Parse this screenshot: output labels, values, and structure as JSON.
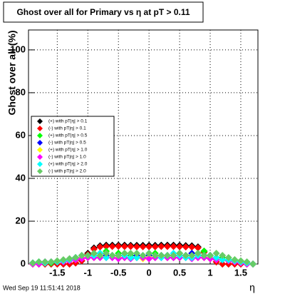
{
  "chart_data": {
    "type": "scatter",
    "title": "Ghost over all for Primary vs η at pT > 0.11",
    "y_label": "Ghost over all (%)",
    "x_label": "η",
    "timestamp": "Wed Sep 19 11:51:41 2018",
    "xlim": [
      -1.97,
      1.78
    ],
    "ylim": [
      0,
      109.3
    ],
    "xticks": [
      -1.5,
      -1,
      -0.5,
      0,
      0.5,
      1,
      1.5
    ],
    "yticks": [
      0,
      20,
      40,
      60,
      80,
      100
    ],
    "grid": true,
    "legend": "left",
    "x": [
      -1.9,
      -1.8,
      -1.7,
      -1.6,
      -1.5,
      -1.4,
      -1.3,
      -1.2,
      -1.1,
      -1.0,
      -0.9,
      -0.8,
      -0.7,
      -0.6,
      -0.5,
      -0.4,
      -0.3,
      -0.2,
      -0.1,
      0,
      0.1,
      0.2,
      0.3,
      0.4,
      0.5,
      0.6,
      0.7,
      0.8,
      0.9,
      1.0,
      1.1,
      1.2,
      1.3,
      1.4,
      1.5,
      1.6,
      1.7
    ],
    "series": [
      {
        "name": "(+) with pT|η| > 0.1",
        "color": "#000000",
        "values": [
          0,
          0,
          0,
          0,
          0,
          0,
          0,
          0.5,
          1.5,
          5,
          7.5,
          8.5,
          8.8,
          8.8,
          8.8,
          8.8,
          8.7,
          8.7,
          8.7,
          8.7,
          8.7,
          8.8,
          8.8,
          8.8,
          8.7,
          8.6,
          8.5,
          8,
          6,
          3,
          1,
          0,
          0,
          0,
          0,
          0,
          0
        ]
      },
      {
        "name": "(-) with pT|η| > 0.1",
        "color": "#ff0000",
        "values": [
          0,
          0,
          0,
          0,
          0,
          0,
          0,
          0.5,
          1.5,
          4.5,
          7,
          8,
          8.2,
          8.2,
          8.3,
          8.2,
          8.2,
          8.1,
          8.1,
          8.1,
          8.1,
          8.2,
          8.2,
          8.2,
          8.1,
          8,
          7.9,
          7.6,
          5.5,
          2.5,
          1,
          0,
          0,
          0,
          0,
          0,
          0
        ]
      },
      {
        "name": "(+) with pT|η| > 0.5",
        "color": "#00ff00",
        "values": [
          0.5,
          1,
          0.5,
          0.5,
          1,
          1,
          2,
          3,
          4,
          4,
          5,
          5,
          6,
          4,
          5,
          5,
          4,
          3,
          3,
          4,
          5,
          4,
          3,
          4,
          5,
          4,
          5,
          5,
          6,
          4,
          3,
          3,
          2,
          2,
          1,
          0.5,
          0
        ]
      },
      {
        "name": "(-) with pT|η| > 0.5",
        "color": "#0000ff",
        "values": [
          0.5,
          0.5,
          1,
          1,
          1,
          1.5,
          2,
          3,
          3,
          4,
          4,
          5,
          4,
          4,
          3,
          4,
          3,
          4,
          3,
          4,
          3,
          4,
          4,
          3,
          4,
          4,
          5,
          4,
          4,
          4,
          3,
          2,
          2,
          1,
          1,
          0.5,
          0
        ]
      },
      {
        "name": "(+) with pT|η| > 1.0",
        "color": "#ffff00",
        "values": [
          0,
          0.5,
          0.5,
          1,
          1,
          1.5,
          2,
          2,
          3,
          3,
          3,
          3.5,
          3,
          4,
          3,
          3,
          3,
          3,
          2.5,
          3,
          3,
          3.5,
          3,
          3,
          3,
          3,
          3,
          3,
          3,
          3,
          2,
          2,
          1.5,
          1,
          0.5,
          0.5,
          0
        ]
      },
      {
        "name": "(-) with pT|η| > 1.0",
        "color": "#ff00ff",
        "values": [
          0,
          0,
          0.5,
          1,
          1,
          1,
          1.5,
          2,
          2.5,
          3,
          3,
          3,
          3,
          3,
          2.5,
          3,
          2.5,
          3,
          3,
          2.5,
          3,
          3,
          3,
          3,
          3,
          3,
          2.5,
          3,
          3,
          2.5,
          2,
          2,
          1.5,
          1,
          0.5,
          0,
          0
        ]
      },
      {
        "name": "(+) with pT|η| > 2.0",
        "color": "#00ffff",
        "values": [
          0.5,
          1,
          0.5,
          1,
          1,
          1.5,
          2,
          3,
          4,
          4,
          4,
          5,
          3,
          4,
          4,
          4,
          3,
          3,
          4,
          5,
          4,
          3,
          4,
          5,
          4,
          3,
          3,
          4,
          4,
          4,
          3,
          2,
          2,
          1.5,
          1,
          0.5,
          0
        ]
      },
      {
        "name": "(-) with pT|η| > 2.0",
        "color": "#66cc66",
        "values": [
          0.5,
          1,
          1,
          1,
          1.5,
          2,
          2.5,
          3,
          4,
          4,
          5,
          4,
          5,
          4,
          4,
          5,
          5,
          5,
          4,
          5,
          4,
          4,
          4,
          4,
          5,
          4,
          4,
          5,
          4,
          4,
          5,
          4,
          3,
          2,
          1.5,
          1,
          0
        ]
      }
    ]
  }
}
